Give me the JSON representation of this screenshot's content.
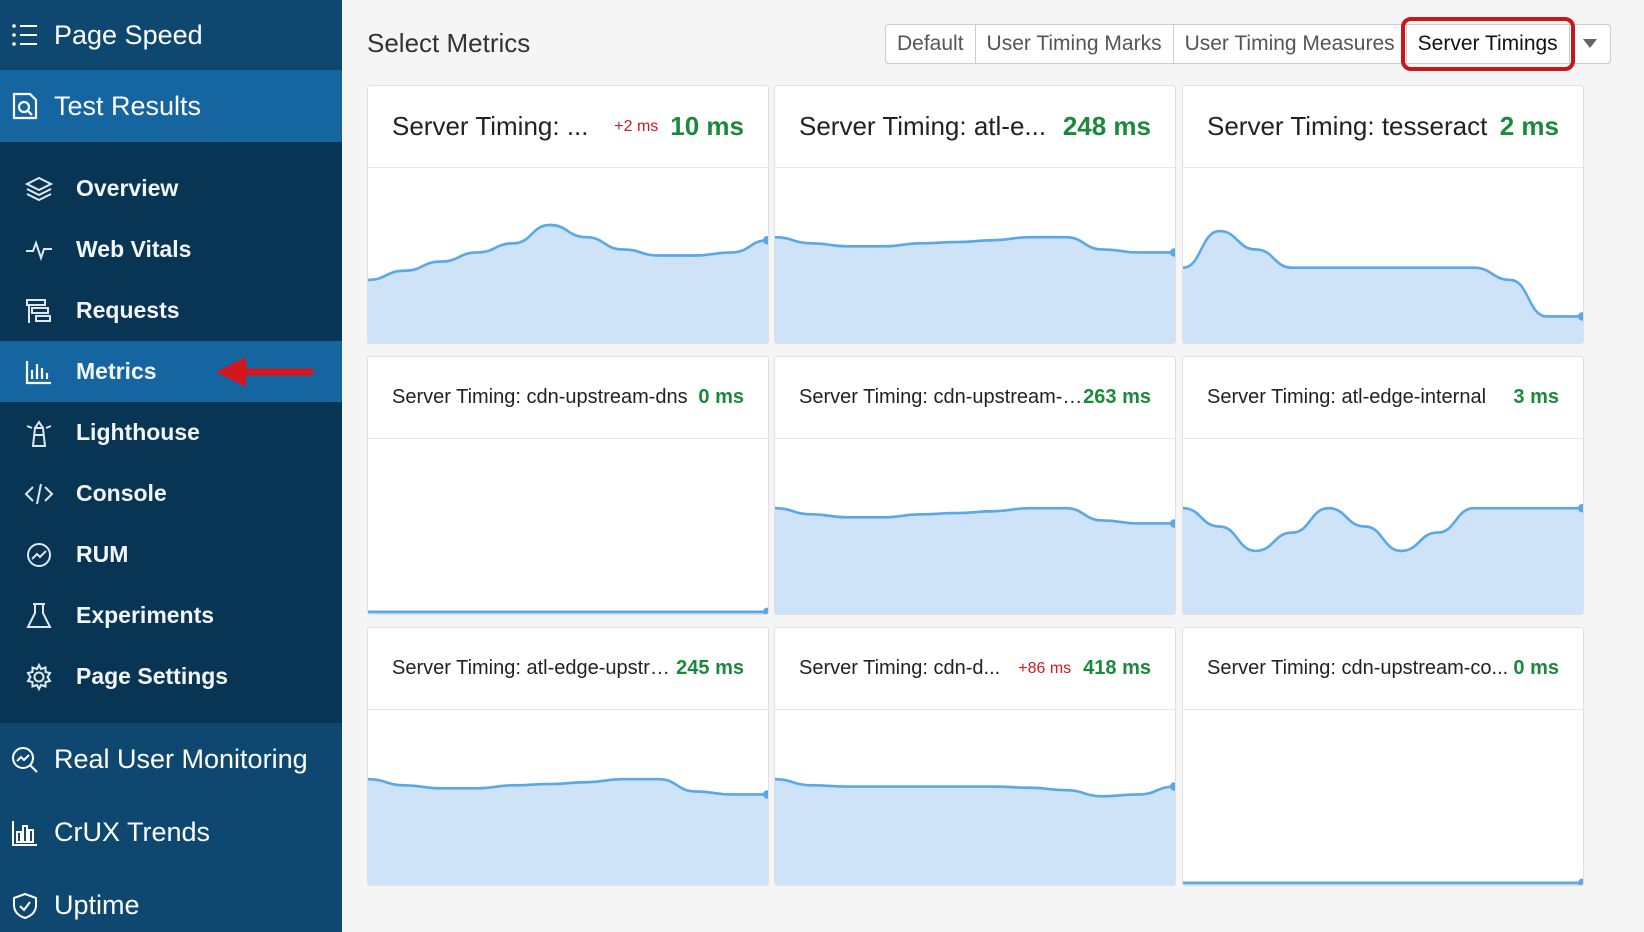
{
  "sidebar": {
    "app_title": "Page Speed",
    "section_title": "Test Results",
    "items": [
      {
        "label": "Overview",
        "icon": "layers-icon"
      },
      {
        "label": "Web Vitals",
        "icon": "pulse-icon"
      },
      {
        "label": "Requests",
        "icon": "waterfall-icon"
      },
      {
        "label": "Metrics",
        "icon": "bar-chart-icon",
        "active": true
      },
      {
        "label": "Lighthouse",
        "icon": "lighthouse-icon"
      },
      {
        "label": "Console",
        "icon": "code-icon"
      },
      {
        "label": "RUM",
        "icon": "gauge-icon"
      },
      {
        "label": "Experiments",
        "icon": "flask-icon"
      },
      {
        "label": "Page Settings",
        "icon": "gear-icon"
      }
    ],
    "bottom": [
      {
        "label": "Real User Monitoring",
        "icon": "rum-search-icon"
      },
      {
        "label": "CrUX Trends",
        "icon": "crux-chart-icon"
      },
      {
        "label": "Uptime",
        "icon": "shield-check-icon"
      }
    ]
  },
  "header": {
    "title": "Select Metrics",
    "tabs": [
      "Default",
      "User Timing Marks",
      "User Timing Measures",
      "Server Timings"
    ],
    "selected_tab": "Server Timings"
  },
  "cards": [
    {
      "title": "Server Timing: ...",
      "delta": "+2 ms",
      "value": "10 ms",
      "large": true,
      "series": [
        10,
        11.5,
        13,
        14.5,
        16,
        19,
        17,
        15,
        14,
        14,
        14.5,
        16.5
      ]
    },
    {
      "title": "Server Timing: atl-e...",
      "delta": "",
      "value": "248 ms",
      "large": true,
      "series": [
        17,
        16,
        15.5,
        15.5,
        16,
        16.2,
        16.5,
        17,
        17,
        15,
        14.5,
        14.5
      ]
    },
    {
      "title": "Server Timing: tesseract",
      "delta": "",
      "value": "2 ms",
      "large": true,
      "series": [
        12,
        18,
        15,
        12,
        12,
        12,
        12,
        12,
        12,
        10,
        4,
        4
      ]
    },
    {
      "title": "Server Timing: cdn-upstream-dns",
      "delta": "",
      "value": "0 ms",
      "large": false,
      "series": [
        0,
        0,
        0,
        0,
        0,
        0,
        0,
        0,
        0,
        0,
        0,
        0
      ]
    },
    {
      "title": "Server Timing: cdn-upstream-f...",
      "delta": "",
      "value": "263 ms",
      "large": false,
      "series": [
        17,
        16,
        15.5,
        15.5,
        16,
        16.2,
        16.5,
        17,
        17,
        15,
        14.5,
        14.5
      ]
    },
    {
      "title": "Server Timing: atl-edge-internal",
      "delta": "",
      "value": "3 ms",
      "large": false,
      "series": [
        17,
        14,
        10,
        13,
        17,
        14,
        10,
        13,
        17,
        17,
        17,
        17
      ]
    },
    {
      "title": "Server Timing: atl-edge-upstre...",
      "delta": "",
      "value": "245 ms",
      "large": false,
      "series": [
        17,
        16,
        15.5,
        15.5,
        16,
        16.2,
        16.5,
        17,
        17,
        15,
        14.5,
        14.5
      ]
    },
    {
      "title": "Server Timing: cdn-d...",
      "delta": "+86 ms",
      "value": "418 ms",
      "large": false,
      "series": [
        17,
        16,
        15.8,
        15.8,
        15.8,
        15.8,
        15.8,
        15.6,
        15.2,
        14.2,
        14.5,
        15.8
      ]
    },
    {
      "title": "Server Timing: cdn-upstream-co...",
      "delta": "",
      "value": "0 ms",
      "large": false,
      "series": [
        0,
        0,
        0,
        0,
        0,
        0,
        0,
        0,
        0,
        0,
        0,
        0
      ]
    }
  ],
  "colors": {
    "sidebar": "#0e4870",
    "active": "#1565a0",
    "submenu": "#093554",
    "value_green": "#1a8a3a",
    "delta_red": "#d4171e",
    "line": "#5aa8e6",
    "fill": "#cfe3f8",
    "highlight": "#c8161d"
  }
}
